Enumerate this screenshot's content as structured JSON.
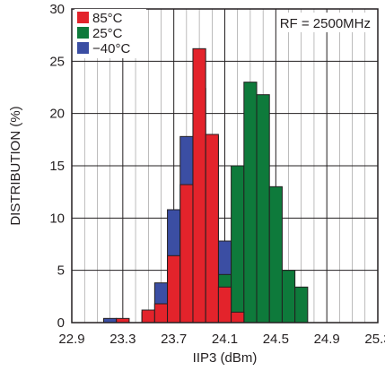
{
  "chart_data": {
    "type": "bar",
    "title": "",
    "xlabel": "IIP3 (dBm)",
    "ylabel": "DISTRIBUTION (%)",
    "annotation": "RF = 2500MHz",
    "xlim": [
      22.9,
      25.3
    ],
    "ylim": [
      0,
      30
    ],
    "bin_width": 0.1,
    "x_ticks": [
      22.9,
      23.3,
      23.7,
      24.1,
      24.5,
      24.9,
      25.3
    ],
    "x_tick_labels": [
      "22.9",
      "23.3",
      "23.7",
      "24.1",
      "24.5",
      "24.9",
      "25.3"
    ],
    "y_ticks": [
      0,
      5,
      10,
      15,
      20,
      25,
      30
    ],
    "y_tick_labels": [
      "0",
      "5",
      "10",
      "15",
      "20",
      "25",
      "30"
    ],
    "grid": true,
    "legend_position": "top-left",
    "series": [
      {
        "name": "−40°C",
        "color": "#3b4ea3",
        "x": [
          23.2,
          23.5,
          23.6,
          23.7,
          23.8,
          23.9,
          24.0,
          24.1,
          24.2
        ],
        "values": [
          0.4,
          1.0,
          3.8,
          10.8,
          17.8,
          22.4,
          17.8,
          7.8,
          0.4
        ]
      },
      {
        "name": "25°C",
        "color": "#0e7a3b",
        "x": [
          23.9,
          24.0,
          24.1,
          24.2,
          24.3,
          24.4,
          24.5,
          24.6,
          24.7
        ],
        "values": [
          0.2,
          0.6,
          4.6,
          15.0,
          23.0,
          21.8,
          13.0,
          5.0,
          3.4
        ]
      },
      {
        "name": "85°C",
        "color": "#e3232b",
        "x": [
          23.3,
          23.5,
          23.6,
          23.7,
          23.8,
          23.9,
          24.0,
          24.1,
          24.2
        ],
        "values": [
          0.4,
          1.2,
          1.8,
          6.4,
          13.2,
          26.2,
          18.0,
          3.4,
          1.0
        ]
      }
    ],
    "legend": [
      {
        "name": "85°C",
        "color": "#e3232b"
      },
      {
        "name": "25°C",
        "color": "#0e7a3b"
      },
      {
        "name": "−40°C",
        "color": "#3b4ea3"
      }
    ]
  }
}
